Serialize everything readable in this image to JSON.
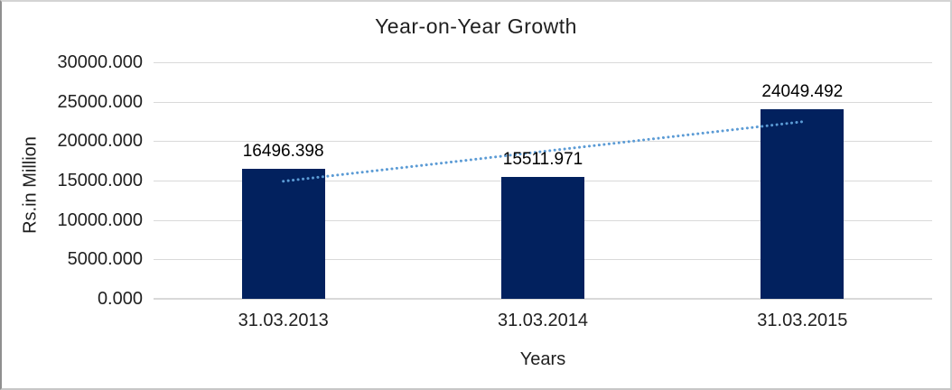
{
  "chart_data": {
    "type": "bar",
    "title": "Year-on-Year Growth",
    "xlabel": "Years",
    "ylabel": "Rs.in Million",
    "categories": [
      "31.03.2013",
      "31.03.2014",
      "31.03.2015"
    ],
    "values": [
      16496.398,
      15511.971,
      24049.492
    ],
    "data_labels": [
      "16496.398",
      "15511.971",
      "24049.492"
    ],
    "y_ticks": [
      "30000.000",
      "25000.000",
      "20000.000",
      "15000.000",
      "10000.000",
      "5000.000",
      "0.000"
    ],
    "y_tick_values": [
      30000,
      25000,
      20000,
      15000,
      10000,
      5000,
      0
    ],
    "ylim": [
      0,
      30000
    ],
    "grid": true,
    "legend": "none",
    "bar_color": "#02215e",
    "gridline_color": "#d9d9d9",
    "axis_line_color": "#d9d9d9",
    "text_color": "#1f1f1f",
    "trendline": {
      "type": "linear",
      "style": "dotted",
      "color": "#5b9bd5"
    }
  }
}
